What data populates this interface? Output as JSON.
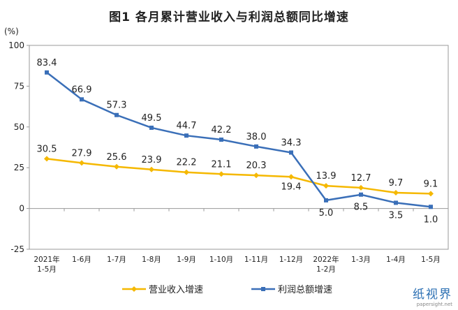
{
  "chart_data": {
    "type": "line",
    "title": "图1  各月累计营业收入与利润总额同比增速",
    "unit": "(%)",
    "categories": [
      [
        "2021年",
        "1-5月"
      ],
      [
        "1-6月"
      ],
      [
        "1-7月"
      ],
      [
        "1-8月"
      ],
      [
        "1-9月"
      ],
      [
        "1-10月"
      ],
      [
        "1-11月"
      ],
      [
        "1-12月"
      ],
      [
        "2022年",
        "1-2月"
      ],
      [
        "1-3月"
      ],
      [
        "1-4月"
      ],
      [
        "1-5月"
      ]
    ],
    "ylim": [
      -25,
      100
    ],
    "yticks": [
      "100",
      "75",
      "50",
      "25",
      "0",
      "-25"
    ],
    "grid": false,
    "legend": "bottom",
    "series": [
      {
        "name": "营业收入增速",
        "color": "#f5b800",
        "values": [
          30.5,
          27.9,
          25.6,
          23.9,
          22.2,
          21.1,
          20.3,
          19.4,
          13.9,
          12.7,
          9.7,
          9.1
        ],
        "labels": [
          "30.5",
          "27.9",
          "25.6",
          "23.9",
          "22.2",
          "21.1",
          "20.3",
          "19.4",
          "13.9",
          "12.7",
          "9.7",
          "9.1"
        ]
      },
      {
        "name": "利润总额增速",
        "color": "#3a6fb8",
        "values": [
          83.4,
          66.9,
          57.3,
          49.5,
          44.7,
          42.2,
          38.0,
          34.3,
          5.0,
          8.5,
          3.5,
          1.0
        ],
        "labels": [
          "83.4",
          "66.9",
          "57.3",
          "49.5",
          "44.7",
          "42.2",
          "38.0",
          "34.3",
          "5.0",
          "8.5",
          "3.5",
          "1.0"
        ]
      }
    ]
  },
  "watermark": {
    "text": "纸视界",
    "url": "papersight.net"
  }
}
